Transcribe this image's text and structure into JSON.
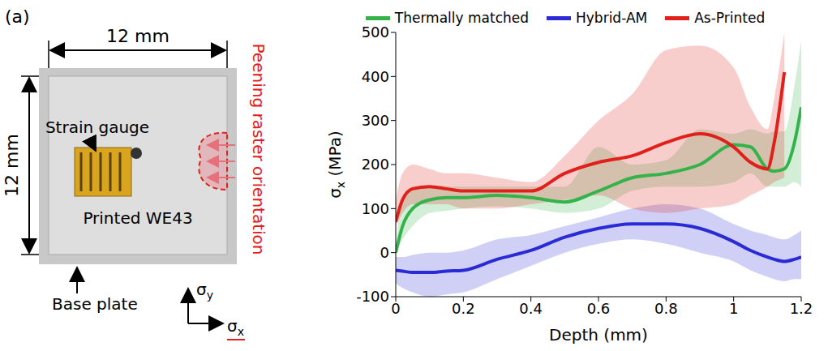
{
  "panel_label": "(a)",
  "diagram": {
    "width_label": "12 mm",
    "height_label": "12 mm",
    "gauge_label": "Strain gauge",
    "sample_label": "Printed WE43",
    "base_label": "Base plate",
    "peening_label": "Peening raster orientation",
    "axis_y_label": "σy",
    "axis_x_label": "σx"
  },
  "chart_data": {
    "type": "line",
    "x_label": "Depth (mm)",
    "y_label": "σx (MPa)",
    "x": [
      0,
      0.02,
      0.05,
      0.1,
      0.15,
      0.2,
      0.3,
      0.4,
      0.5,
      0.6,
      0.7,
      0.8,
      0.9,
      1.0,
      1.05,
      1.1,
      1.12,
      1.15,
      1.18,
      1.2
    ],
    "xlim": [
      0,
      1.2
    ],
    "xticks": [
      0,
      0.2,
      0.4,
      0.6,
      0.8,
      1,
      1.2
    ],
    "ylim": [
      -100,
      500
    ],
    "yticks": [
      -100,
      0,
      100,
      200,
      300,
      400,
      500
    ],
    "grid": false,
    "legend": "top",
    "series": [
      {
        "name": "Thermally matched",
        "color": "#33b34a",
        "values": [
          0,
          60,
          100,
          120,
          125,
          125,
          130,
          125,
          115,
          140,
          170,
          180,
          200,
          245,
          240,
          190,
          185,
          190,
          250,
          330
        ],
        "lower": [
          0,
          30,
          60,
          90,
          95,
          100,
          105,
          100,
          90,
          100,
          140,
          150,
          150,
          160,
          180,
          150,
          150,
          150,
          160,
          150
        ],
        "upper": [
          0,
          130,
          140,
          150,
          150,
          150,
          150,
          150,
          150,
          240,
          200,
          210,
          280,
          270,
          280,
          270,
          275,
          275,
          380,
          480
        ]
      },
      {
        "name": "Hybrid-AM",
        "color": "#2b2bd6",
        "values": [
          -40,
          -42,
          -45,
          -45,
          -42,
          -40,
          -15,
          5,
          35,
          55,
          65,
          65,
          55,
          25,
          5,
          -10,
          -15,
          -20,
          -15,
          -10
        ],
        "lower": [
          -70,
          -80,
          -90,
          -100,
          -95,
          -90,
          -60,
          -30,
          0,
          20,
          30,
          20,
          0,
          -20,
          -40,
          -55,
          -60,
          -65,
          -60,
          -60
        ],
        "upper": [
          -10,
          -10,
          -5,
          0,
          0,
          5,
          30,
          40,
          60,
          80,
          100,
          110,
          100,
          65,
          50,
          40,
          35,
          30,
          40,
          50
        ]
      },
      {
        "name": "As-Printed",
        "color": "#e0201b",
        "values": [
          70,
          120,
          145,
          150,
          145,
          140,
          140,
          140,
          180,
          205,
          220,
          250,
          270,
          240,
          205,
          190,
          250,
          410,
          null,
          null
        ],
        "lower": [
          60,
          90,
          110,
          110,
          110,
          100,
          100,
          110,
          120,
          130,
          100,
          90,
          100,
          110,
          130,
          150,
          160,
          170,
          null,
          null
        ],
        "upper": [
          120,
          180,
          200,
          190,
          180,
          180,
          170,
          160,
          220,
          300,
          360,
          460,
          470,
          420,
          330,
          280,
          350,
          500,
          null,
          null
        ]
      }
    ]
  }
}
